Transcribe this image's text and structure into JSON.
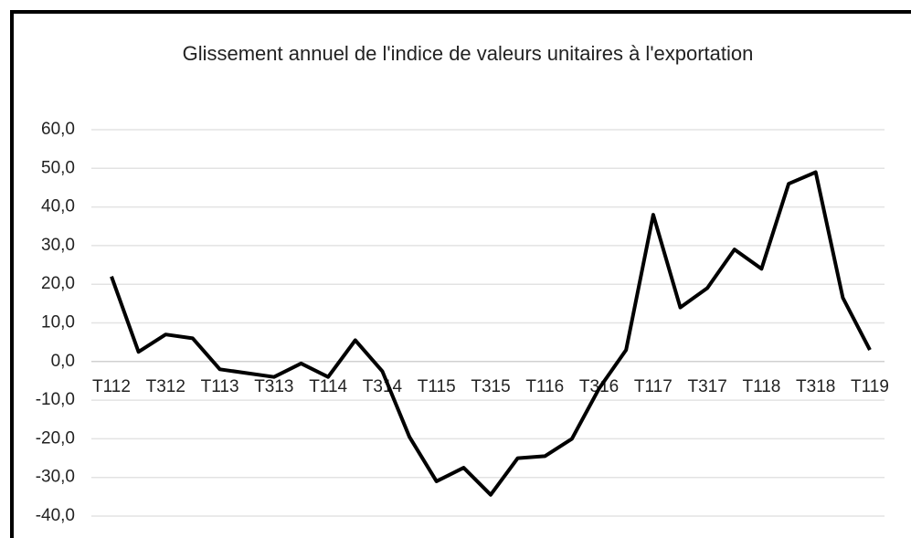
{
  "chart_data": {
    "type": "line",
    "title": "Glissement annuel de l'indice de valeurs unitaires à l'exportation",
    "categories": [
      "T112",
      null,
      "T312",
      null,
      "T113",
      null,
      "T313",
      null,
      "T114",
      null,
      "T314",
      null,
      "T115",
      null,
      "T315",
      null,
      "T116",
      null,
      "T316",
      null,
      "T117",
      null,
      "T317",
      null,
      "T118",
      null,
      "T318",
      null,
      "T119"
    ],
    "values": [
      22,
      2.5,
      7,
      6,
      -2,
      -3,
      -4,
      -0.5,
      -4,
      5.5,
      -2.5,
      -19.5,
      -31,
      -27.5,
      -34.5,
      -25,
      -24.5,
      -20,
      -7,
      3,
      38,
      14,
      19,
      29,
      24,
      46,
      49,
      16.5,
      3
    ],
    "color": "#000000",
    "ylim": [
      -40,
      60
    ],
    "yticks": [
      {
        "value": -40,
        "label": "-40,0"
      },
      {
        "value": -30,
        "label": "-30,0"
      },
      {
        "value": -20,
        "label": "-20,0"
      },
      {
        "value": -10,
        "label": "-10,0"
      },
      {
        "value": 0,
        "label": "0,0"
      },
      {
        "value": 10,
        "label": "10,0"
      },
      {
        "value": 20,
        "label": "20,0"
      },
      {
        "value": 30,
        "label": "30,0"
      },
      {
        "value": 40,
        "label": "40,0"
      },
      {
        "value": 50,
        "label": "50,0"
      },
      {
        "value": 60,
        "label": "60,0"
      }
    ],
    "grid": true
  }
}
